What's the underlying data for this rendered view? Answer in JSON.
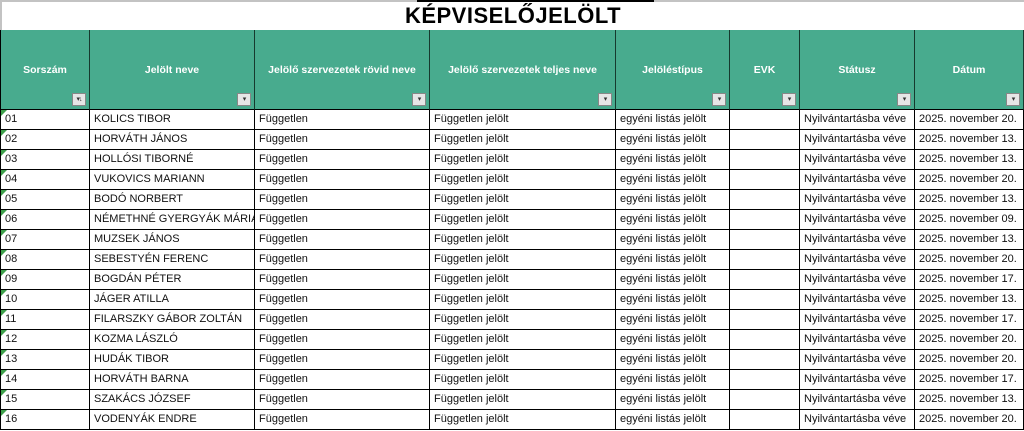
{
  "title": "KÉPVISELŐJELÖLT",
  "icons": {
    "filter": "▾",
    "filter_sorted": "▾↓"
  },
  "table": {
    "columns": [
      {
        "label": "Sorszám",
        "filter_icon": "filter-sorted-icon"
      },
      {
        "label": "Jelölt neve",
        "filter_icon": "filter-arrow-icon"
      },
      {
        "label": "Jelölő szervezetek rövid neve",
        "filter_icon": "filter-arrow-icon"
      },
      {
        "label": "Jelölő szervezetek teljes neve",
        "filter_icon": "filter-arrow-icon"
      },
      {
        "label": "Jelöléstípus",
        "filter_icon": "filter-arrow-icon"
      },
      {
        "label": "EVK",
        "filter_icon": "filter-arrow-icon"
      },
      {
        "label": "Státusz",
        "filter_icon": "filter-arrow-icon"
      },
      {
        "label": "Dátum",
        "filter_icon": "filter-arrow-icon"
      }
    ],
    "rows": [
      [
        "01",
        "KOLICS TIBOR",
        "Független",
        "Független jelölt",
        "egyéni listás jelölt",
        "",
        "Nyilvántartásba véve",
        "2025. november 20."
      ],
      [
        "02",
        "HORVÁTH JÁNOS",
        "Független",
        "Független jelölt",
        "egyéni listás jelölt",
        "",
        "Nyilvántartásba véve",
        "2025. november 13."
      ],
      [
        "03",
        "HOLLÓSI TIBORNÉ",
        "Független",
        "Független jelölt",
        "egyéni listás jelölt",
        "",
        "Nyilvántartásba véve",
        "2025. november 13."
      ],
      [
        "04",
        "VUKOVICS MARIANN",
        "Független",
        "Független jelölt",
        "egyéni listás jelölt",
        "",
        "Nyilvántartásba véve",
        "2025. november 20."
      ],
      [
        "05",
        "BODÓ NORBERT",
        "Független",
        "Független jelölt",
        "egyéni listás jelölt",
        "",
        "Nyilvántartásba véve",
        "2025. november 13."
      ],
      [
        "06",
        "NÉMETHNÉ GYERGYÁK MÁRIA",
        "Független",
        "Független jelölt",
        "egyéni listás jelölt",
        "",
        "Nyilvántartásba véve",
        "2025. november 09."
      ],
      [
        "07",
        "MUZSEK JÁNOS",
        "Független",
        "Független jelölt",
        "egyéni listás jelölt",
        "",
        "Nyilvántartásba véve",
        "2025. november 13."
      ],
      [
        "08",
        "SEBESTYÉN FERENC",
        "Független",
        "Független jelölt",
        "egyéni listás jelölt",
        "",
        "Nyilvántartásba véve",
        "2025. november 20."
      ],
      [
        "09",
        "BOGDÁN PÉTER",
        "Független",
        "Független jelölt",
        "egyéni listás jelölt",
        "",
        "Nyilvántartásba véve",
        "2025. november 17."
      ],
      [
        "10",
        "JÁGER ATILLA",
        "Független",
        "Független jelölt",
        "egyéni listás jelölt",
        "",
        "Nyilvántartásba véve",
        "2025. november 13."
      ],
      [
        "11",
        "FILARSZKY GÁBOR ZOLTÁN",
        "Független",
        "Független jelölt",
        "egyéni listás jelölt",
        "",
        "Nyilvántartásba véve",
        "2025. november 17."
      ],
      [
        "12",
        "KOZMA LÁSZLÓ",
        "Független",
        "Független jelölt",
        "egyéni listás jelölt",
        "",
        "Nyilvántartásba véve",
        "2025. november 20."
      ],
      [
        "13",
        "HUDÁK TIBOR",
        "Független",
        "Független jelölt",
        "egyéni listás jelölt",
        "",
        "Nyilvántartásba véve",
        "2025. november 20."
      ],
      [
        "14",
        "HORVÁTH BARNA",
        "Független",
        "Független jelölt",
        "egyéni listás jelölt",
        "",
        "Nyilvántartásba véve",
        "2025. november 17."
      ],
      [
        "15",
        "SZAKÁCS JÓZSEF",
        "Független",
        "Független jelölt",
        "egyéni listás jelölt",
        "",
        "Nyilvántartásba véve",
        "2025. november 13."
      ],
      [
        "16",
        "VODENYÁK ENDRE",
        "Független",
        "Független jelölt",
        "egyéni listás jelölt",
        "",
        "Nyilvántartásba véve",
        "2025. november 20."
      ]
    ]
  },
  "colors": {
    "header_teal": "#48ab8e",
    "grid_border": "#000000",
    "error_triangle_green": "#3da04a",
    "title_outer_border_gray": "#c3c3c3"
  }
}
